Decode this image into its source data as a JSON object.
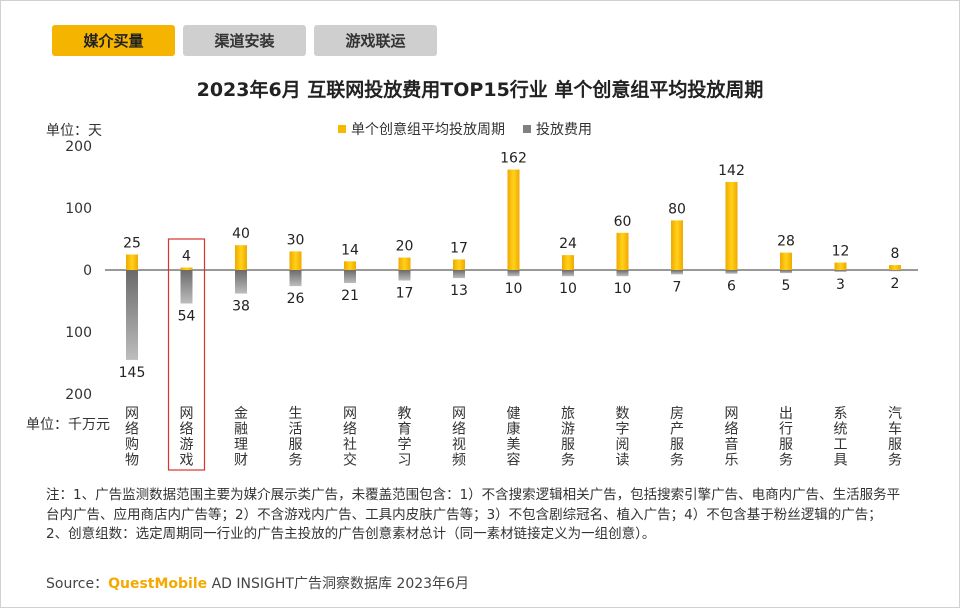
{
  "tabs": [
    {
      "label": "媒介买量",
      "active": true
    },
    {
      "label": "渠道安装",
      "active": false
    },
    {
      "label": "游戏联运",
      "active": false
    }
  ],
  "units": {
    "top": "单位：天",
    "bottom": "单位：千万元"
  },
  "colors": {
    "accent": "#f5b400",
    "series_yellow": "#f7b800",
    "series_gray": "#808080",
    "highlight_box": "#d9342b"
  },
  "chart_data": {
    "type": "bar",
    "title": "2023年6月 互联网投放费用TOP15行业 单个创意组平均投放周期",
    "categories": [
      "网络购物",
      "网络游戏",
      "金融理财",
      "生活服务",
      "网络社交",
      "教育学习",
      "网络视频",
      "健康美容",
      "旅游服务",
      "数字阅读",
      "房产服务",
      "网络音乐",
      "出行服务",
      "系统工具",
      "汽车服务"
    ],
    "series": [
      {
        "name": "单个创意组平均投放周期",
        "values": [
          25,
          4,
          40,
          30,
          14,
          20,
          17,
          162,
          24,
          60,
          80,
          142,
          28,
          12,
          8
        ],
        "direction": "up"
      },
      {
        "name": "投放费用",
        "values": [
          145,
          54,
          38,
          26,
          21,
          17,
          13,
          10,
          10,
          10,
          7,
          6,
          5,
          3,
          2
        ],
        "direction": "down"
      }
    ],
    "y_tick_labels": [
      "200",
      "100",
      "0",
      "100",
      "200"
    ],
    "ylim": [
      -200,
      200
    ],
    "highlighted_category": "网络游戏",
    "legend": "top"
  },
  "footnote": "注：1、广告监测数据范围主要为媒介展示类广告，未覆盖范围包含：1）不含搜索逻辑相关广告，包括搜索引擎广告、电商内广告、生活服务平台内广告、应用商店内广告等；2）不含游戏内广告、工具内皮肤广告等；3）不包含剧综冠名、植入广告；4）不包含基于粉丝逻辑的广告；2、创意组数：选定周期同一行业的广告主投放的广告创意素材总计（同一素材链接定义为一组创意）。",
  "source": {
    "prefix": "Source：",
    "brand": "QuestMobile",
    "text": " AD INSIGHT广告洞察数据库 2023年6月"
  }
}
